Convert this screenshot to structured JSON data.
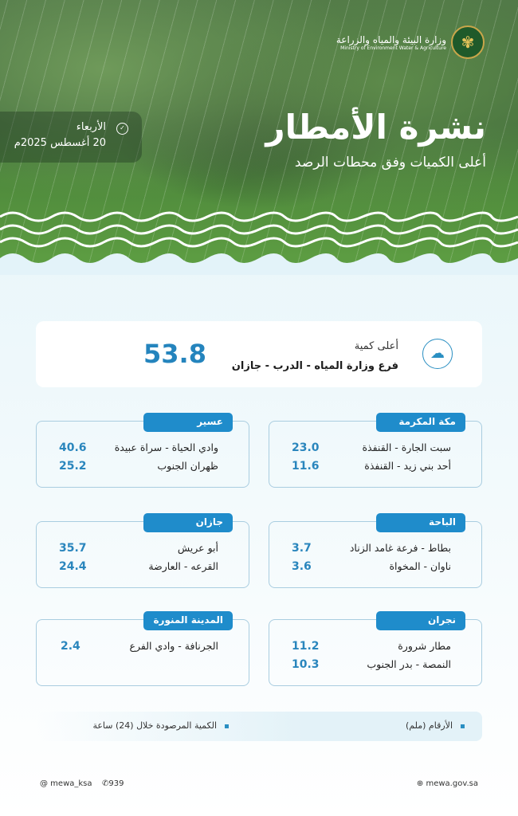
{
  "header": {
    "ministry_ar": "وزارة البيئة والمياه والزراعة",
    "ministry_en": "Ministry of Environment Water & Agriculture",
    "title": "نشرة الأمطار",
    "subtitle": "أعلى الكميات وفق محطات الرصد",
    "day": "الأربعاء",
    "date": "20 أغسطس 2025م"
  },
  "highlight": {
    "label": "أعلى كمية",
    "location": "فرع وزارة المياه - الدرب - جازان",
    "value": "53.8",
    "icon": "rain-cloud-icon"
  },
  "regions": [
    {
      "name": "مكة المكرمة",
      "stations": [
        {
          "name": "سبت الجارة - القنفذة",
          "value": "23.0"
        },
        {
          "name": "أحد بني زيد - القنفذة",
          "value": "11.6"
        }
      ]
    },
    {
      "name": "عسير",
      "stations": [
        {
          "name": "وادي الحياة - سراة عبيدة",
          "value": "40.6"
        },
        {
          "name": "ظهران الجنوب",
          "value": "25.2"
        }
      ]
    },
    {
      "name": "الباحة",
      "stations": [
        {
          "name": "بطاط - فرعة غامد الزناد",
          "value": "3.7"
        },
        {
          "name": "ناوان - المخواة",
          "value": "3.6"
        }
      ]
    },
    {
      "name": "جازان",
      "stations": [
        {
          "name": "أبو عريش",
          "value": "35.7"
        },
        {
          "name": "القرعه - العارضة",
          "value": "24.4"
        }
      ]
    },
    {
      "name": "نجران",
      "stations": [
        {
          "name": "مطار شرورة",
          "value": "11.2"
        },
        {
          "name": "النمصة - بدر الجنوب",
          "value": "10.3"
        }
      ]
    },
    {
      "name": "المدينة المنورة",
      "stations": [
        {
          "name": "الجرنافة - وادي الفرع",
          "value": "2.4"
        }
      ]
    }
  ],
  "legend": {
    "units": "الأرقام (ملم)",
    "period": "الكمية المرصودة خلال (24) ساعة"
  },
  "footer": {
    "twitter": "@ mewa_ksa",
    "phone": "939",
    "website": "mewa.gov.sa"
  },
  "colors": {
    "accent": "#1f8ccb",
    "value": "#2484bd"
  }
}
